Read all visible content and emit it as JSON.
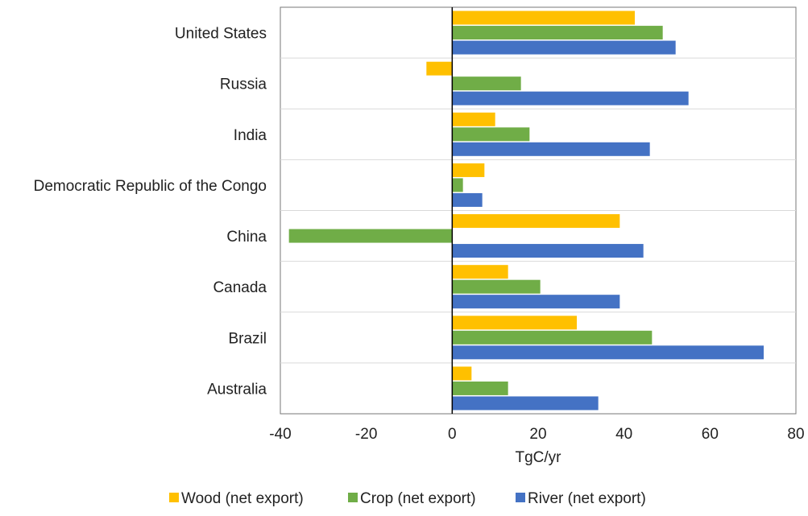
{
  "chart_data": {
    "type": "bar",
    "orientation": "horizontal",
    "categories": [
      "United States",
      "Russia",
      "India",
      "Democratic Republic of the Congo",
      "China",
      "Canada",
      "Brazil",
      "Australia"
    ],
    "series": [
      {
        "name": "Wood (net export)",
        "color": "#FFC000",
        "values": [
          42.5,
          -6,
          10,
          7.5,
          39,
          13,
          29,
          4.5
        ]
      },
      {
        "name": "Crop (net export)",
        "color": "#70AD47",
        "values": [
          49,
          16,
          18,
          2.5,
          -38,
          20.5,
          46.5,
          13
        ]
      },
      {
        "name": "River (net export)",
        "color": "#4472C4",
        "values": [
          52,
          55,
          46,
          7,
          44.5,
          39,
          72.5,
          34
        ]
      }
    ],
    "xlabel": "TgC/yr",
    "ylabel": "",
    "xlim": [
      -40,
      80
    ],
    "xticks": [
      -40,
      -20,
      0,
      20,
      40,
      60,
      80
    ],
    "xtick_labels": [
      "-40",
      "-20",
      "0",
      "20",
      "40",
      "60",
      "80"
    ],
    "grid": "horizontal separators between categories",
    "legend_position": "bottom"
  }
}
